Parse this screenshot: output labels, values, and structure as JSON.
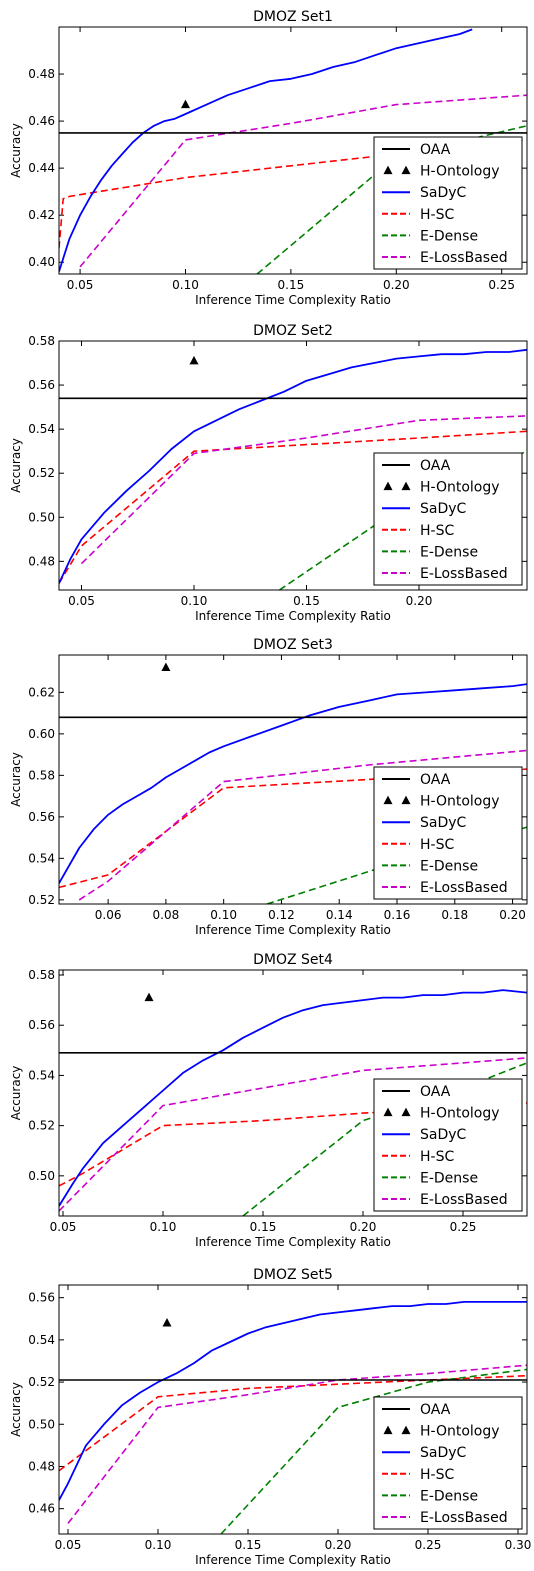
{
  "legend_labels": [
    "OAA",
    "H-Ontology",
    "SaDyC",
    "H-SC",
    "E-Dense",
    "E-LossBased"
  ],
  "colors": {
    "OAA": "#000000",
    "H-Ontology": "#000000",
    "SaDyC": "#0000ff",
    "H-SC": "#ff0000",
    "E-Dense": "#008000",
    "E-LossBased": "#cc00cc"
  },
  "chart_data": [
    {
      "type": "line",
      "title": "DMOZ Set1",
      "xlabel": "Inference Time Complexity Ratio",
      "ylabel": "Accuracy",
      "xlim": [
        0.04,
        0.262
      ],
      "ylim": [
        0.395,
        0.5
      ],
      "xticks": [
        0.05,
        0.1,
        0.15,
        0.2,
        0.25
      ],
      "yticks": [
        0.4,
        0.42,
        0.44,
        0.46,
        0.48
      ],
      "xtick_labels": [
        "0.05",
        "0.10",
        "0.15",
        "0.20",
        "0.25"
      ],
      "ytick_labels": [
        "0.40",
        "0.42",
        "0.44",
        "0.46",
        "0.48"
      ],
      "legend": "lower-right",
      "series": [
        {
          "name": "OAA",
          "style": "solid",
          "x": [
            0.04,
            0.262
          ],
          "y": [
            0.455,
            0.455
          ]
        },
        {
          "name": "H-Ontology",
          "style": "marker",
          "x": [
            0.1
          ],
          "y": [
            0.467
          ]
        },
        {
          "name": "SaDyC",
          "style": "solid",
          "x": [
            0.04,
            0.045,
            0.05,
            0.055,
            0.06,
            0.065,
            0.07,
            0.075,
            0.08,
            0.085,
            0.09,
            0.095,
            0.1,
            0.11,
            0.12,
            0.13,
            0.14,
            0.15,
            0.16,
            0.17,
            0.18,
            0.19,
            0.2,
            0.21,
            0.22,
            0.23,
            0.236
          ],
          "y": [
            0.396,
            0.41,
            0.42,
            0.428,
            0.435,
            0.441,
            0.446,
            0.451,
            0.455,
            0.458,
            0.46,
            0.461,
            0.463,
            0.467,
            0.471,
            0.474,
            0.477,
            0.478,
            0.48,
            0.483,
            0.485,
            0.488,
            0.491,
            0.493,
            0.495,
            0.497,
            0.499
          ]
        },
        {
          "name": "H-SC",
          "style": "dashed",
          "x": [
            0.04,
            0.042,
            0.045,
            0.1,
            0.15,
            0.2,
            0.262
          ],
          "y": [
            0.406,
            0.427,
            0.428,
            0.436,
            0.441,
            0.446,
            0.452
          ]
        },
        {
          "name": "E-Dense",
          "style": "dashed",
          "x": [
            0.134,
            0.2,
            0.262
          ],
          "y": [
            0.395,
            0.445,
            0.458
          ]
        },
        {
          "name": "E-LossBased",
          "style": "dashed",
          "x": [
            0.05,
            0.1,
            0.15,
            0.2,
            0.262
          ],
          "y": [
            0.398,
            0.452,
            0.459,
            0.467,
            0.471
          ]
        }
      ]
    },
    {
      "type": "line",
      "title": "DMOZ Set2",
      "xlabel": "Inference Time Complexity Ratio",
      "ylabel": "Accuracy",
      "xlim": [
        0.04,
        0.248
      ],
      "ylim": [
        0.467,
        0.58
      ],
      "xticks": [
        0.05,
        0.1,
        0.15,
        0.2
      ],
      "yticks": [
        0.48,
        0.5,
        0.52,
        0.54,
        0.56,
        0.58
      ],
      "xtick_labels": [
        "0.05",
        "0.10",
        "0.15",
        "0.20"
      ],
      "ytick_labels": [
        "0.48",
        "0.50",
        "0.52",
        "0.54",
        "0.56",
        "0.58"
      ],
      "legend": "lower-right",
      "series": [
        {
          "name": "OAA",
          "style": "solid",
          "x": [
            0.04,
            0.248
          ],
          "y": [
            0.554,
            0.554
          ]
        },
        {
          "name": "H-Ontology",
          "style": "marker",
          "x": [
            0.1
          ],
          "y": [
            0.571
          ]
        },
        {
          "name": "SaDyC",
          "style": "solid",
          "x": [
            0.04,
            0.045,
            0.05,
            0.055,
            0.06,
            0.07,
            0.08,
            0.09,
            0.1,
            0.11,
            0.12,
            0.13,
            0.14,
            0.15,
            0.16,
            0.17,
            0.18,
            0.19,
            0.2,
            0.21,
            0.22,
            0.23,
            0.24,
            0.248
          ],
          "y": [
            0.47,
            0.481,
            0.49,
            0.496,
            0.502,
            0.512,
            0.521,
            0.531,
            0.539,
            0.544,
            0.549,
            0.553,
            0.557,
            0.562,
            0.565,
            0.568,
            0.57,
            0.572,
            0.573,
            0.574,
            0.574,
            0.575,
            0.575,
            0.576
          ]
        },
        {
          "name": "H-SC",
          "style": "dashed",
          "x": [
            0.04,
            0.05,
            0.1,
            0.15,
            0.2,
            0.248
          ],
          "y": [
            0.47,
            0.487,
            0.53,
            0.533,
            0.536,
            0.539
          ]
        },
        {
          "name": "E-Dense",
          "style": "dashed",
          "x": [
            0.138,
            0.2,
            0.248
          ],
          "y": [
            0.467,
            0.51,
            0.53
          ]
        },
        {
          "name": "E-LossBased",
          "style": "dashed",
          "x": [
            0.05,
            0.1,
            0.15,
            0.2,
            0.248
          ],
          "y": [
            0.479,
            0.529,
            0.536,
            0.544,
            0.546
          ]
        }
      ]
    },
    {
      "type": "line",
      "title": "DMOZ Set3",
      "xlabel": "Inference Time Complexity Ratio",
      "ylabel": "Accuracy",
      "xlim": [
        0.043,
        0.205
      ],
      "ylim": [
        0.518,
        0.638
      ],
      "xticks": [
        0.06,
        0.08,
        0.1,
        0.12,
        0.14,
        0.16,
        0.18,
        0.2
      ],
      "yticks": [
        0.52,
        0.54,
        0.56,
        0.58,
        0.6,
        0.62
      ],
      "xtick_labels": [
        "0.06",
        "0.08",
        "0.10",
        "0.12",
        "0.14",
        "0.16",
        "0.18",
        "0.20"
      ],
      "ytick_labels": [
        "0.52",
        "0.54",
        "0.56",
        "0.58",
        "0.60",
        "0.62"
      ],
      "legend": "lower-right",
      "series": [
        {
          "name": "OAA",
          "style": "solid",
          "x": [
            0.043,
            0.205
          ],
          "y": [
            0.608,
            0.608
          ]
        },
        {
          "name": "H-Ontology",
          "style": "marker",
          "x": [
            0.08
          ],
          "y": [
            0.632
          ]
        },
        {
          "name": "SaDyC",
          "style": "solid",
          "x": [
            0.043,
            0.05,
            0.055,
            0.06,
            0.065,
            0.07,
            0.075,
            0.08,
            0.085,
            0.09,
            0.095,
            0.1,
            0.11,
            0.12,
            0.13,
            0.14,
            0.15,
            0.16,
            0.17,
            0.18,
            0.19,
            0.2,
            0.205
          ],
          "y": [
            0.528,
            0.545,
            0.554,
            0.561,
            0.566,
            0.57,
            0.574,
            0.579,
            0.583,
            0.587,
            0.591,
            0.594,
            0.599,
            0.604,
            0.609,
            0.613,
            0.616,
            0.619,
            0.62,
            0.621,
            0.622,
            0.623,
            0.624
          ]
        },
        {
          "name": "H-SC",
          "style": "dashed",
          "x": [
            0.043,
            0.06,
            0.1,
            0.15,
            0.205
          ],
          "y": [
            0.526,
            0.532,
            0.574,
            0.578,
            0.583
          ]
        },
        {
          "name": "E-Dense",
          "style": "dashed",
          "x": [
            0.115,
            0.16,
            0.205
          ],
          "y": [
            0.518,
            0.538,
            0.555
          ]
        },
        {
          "name": "E-LossBased",
          "style": "dashed",
          "x": [
            0.05,
            0.06,
            0.1,
            0.15,
            0.205
          ],
          "y": [
            0.52,
            0.529,
            0.577,
            0.585,
            0.592
          ]
        }
      ]
    },
    {
      "type": "line",
      "title": "DMOZ Set4",
      "xlabel": "Inference Time Complexity Ratio",
      "ylabel": "Accuracy",
      "xlim": [
        0.048,
        0.282
      ],
      "ylim": [
        0.484,
        0.582
      ],
      "xticks": [
        0.05,
        0.1,
        0.15,
        0.2,
        0.25
      ],
      "yticks": [
        0.5,
        0.52,
        0.54,
        0.56,
        0.58
      ],
      "xtick_labels": [
        "0.05",
        "0.10",
        "0.15",
        "0.20",
        "0.25"
      ],
      "ytick_labels": [
        "0.50",
        "0.52",
        "0.54",
        "0.56",
        "0.58"
      ],
      "legend": "lower-right",
      "series": [
        {
          "name": "OAA",
          "style": "solid",
          "x": [
            0.048,
            0.282
          ],
          "y": [
            0.549,
            0.549
          ]
        },
        {
          "name": "H-Ontology",
          "style": "marker",
          "x": [
            0.093
          ],
          "y": [
            0.571
          ]
        },
        {
          "name": "SaDyC",
          "style": "solid",
          "x": [
            0.048,
            0.055,
            0.06,
            0.065,
            0.07,
            0.08,
            0.09,
            0.1,
            0.11,
            0.12,
            0.13,
            0.14,
            0.15,
            0.16,
            0.17,
            0.18,
            0.19,
            0.2,
            0.21,
            0.22,
            0.23,
            0.24,
            0.25,
            0.26,
            0.27,
            0.282
          ],
          "y": [
            0.488,
            0.497,
            0.503,
            0.508,
            0.513,
            0.52,
            0.527,
            0.534,
            0.541,
            0.546,
            0.55,
            0.555,
            0.559,
            0.563,
            0.566,
            0.568,
            0.569,
            0.57,
            0.571,
            0.571,
            0.572,
            0.572,
            0.573,
            0.573,
            0.574,
            0.573
          ]
        },
        {
          "name": "H-SC",
          "style": "dashed",
          "x": [
            0.048,
            0.06,
            0.1,
            0.15,
            0.2,
            0.25,
            0.282
          ],
          "y": [
            0.496,
            0.501,
            0.52,
            0.522,
            0.525,
            0.527,
            0.529
          ]
        },
        {
          "name": "E-Dense",
          "style": "dashed",
          "x": [
            0.14,
            0.2,
            0.25,
            0.282
          ],
          "y": [
            0.484,
            0.522,
            0.535,
            0.545
          ]
        },
        {
          "name": "E-LossBased",
          "style": "dashed",
          "x": [
            0.048,
            0.1,
            0.15,
            0.2,
            0.25,
            0.282
          ],
          "y": [
            0.486,
            0.528,
            0.535,
            0.542,
            0.545,
            0.547
          ]
        }
      ]
    },
    {
      "type": "line",
      "title": "DMOZ Set5",
      "xlabel": "Inference Time Complexity Ratio",
      "ylabel": "Accuracy",
      "xlim": [
        0.045,
        0.305
      ],
      "ylim": [
        0.448,
        0.566
      ],
      "xticks": [
        0.05,
        0.1,
        0.15,
        0.2,
        0.25,
        0.3
      ],
      "yticks": [
        0.46,
        0.48,
        0.5,
        0.52,
        0.54,
        0.56
      ],
      "xtick_labels": [
        "0.05",
        "0.10",
        "0.15",
        "0.20",
        "0.25",
        "0.30"
      ],
      "ytick_labels": [
        "0.46",
        "0.48",
        "0.50",
        "0.52",
        "0.54",
        "0.56"
      ],
      "legend": "lower-right",
      "series": [
        {
          "name": "OAA",
          "style": "solid",
          "x": [
            0.045,
            0.305
          ],
          "y": [
            0.521,
            0.521
          ]
        },
        {
          "name": "H-Ontology",
          "style": "marker",
          "x": [
            0.105
          ],
          "y": [
            0.548
          ]
        },
        {
          "name": "SaDyC",
          "style": "solid",
          "x": [
            0.045,
            0.05,
            0.06,
            0.07,
            0.08,
            0.09,
            0.1,
            0.11,
            0.12,
            0.13,
            0.14,
            0.15,
            0.16,
            0.17,
            0.18,
            0.19,
            0.2,
            0.21,
            0.22,
            0.23,
            0.24,
            0.25,
            0.26,
            0.27,
            0.28,
            0.29,
            0.3,
            0.305
          ],
          "y": [
            0.464,
            0.472,
            0.49,
            0.5,
            0.509,
            0.515,
            0.52,
            0.524,
            0.529,
            0.535,
            0.539,
            0.543,
            0.546,
            0.548,
            0.55,
            0.552,
            0.553,
            0.554,
            0.555,
            0.556,
            0.556,
            0.557,
            0.557,
            0.558,
            0.558,
            0.558,
            0.558,
            0.558
          ]
        },
        {
          "name": "H-SC",
          "style": "dashed",
          "x": [
            0.045,
            0.1,
            0.15,
            0.2,
            0.25,
            0.305
          ],
          "y": [
            0.478,
            0.513,
            0.517,
            0.519,
            0.521,
            0.523
          ]
        },
        {
          "name": "E-Dense",
          "style": "dashed",
          "x": [
            0.135,
            0.2,
            0.25,
            0.305
          ],
          "y": [
            0.448,
            0.508,
            0.52,
            0.526
          ]
        },
        {
          "name": "E-LossBased",
          "style": "dashed",
          "x": [
            0.05,
            0.1,
            0.15,
            0.2,
            0.25,
            0.305
          ],
          "y": [
            0.453,
            0.508,
            0.514,
            0.521,
            0.524,
            0.528
          ]
        }
      ]
    }
  ]
}
